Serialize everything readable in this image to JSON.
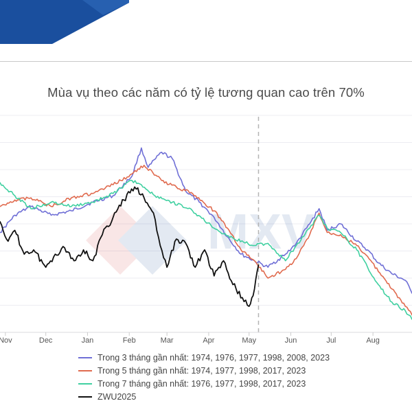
{
  "colors": {
    "banner_blue": "#1a4f9e",
    "banner_blue_light": "#2a64b4",
    "grid": "#ececf2",
    "divider": "#b4b4b4",
    "watermark_red": "#d94a4a",
    "watermark_blue": "#2e5b9e"
  },
  "watermark": {
    "text": "MXV"
  },
  "chart_data": {
    "type": "line",
    "title": "Mùa vụ theo các năm có tỷ lệ tương quan cao trên 70%",
    "xlabel": "",
    "ylabel": "",
    "x_axis": {
      "type": "date",
      "range": [
        "2024-10-28",
        "2025-08-30"
      ],
      "ticks": [
        {
          "date": "2024-11-01",
          "label": "Nov"
        },
        {
          "date": "2024-12-01",
          "label": "Dec"
        },
        {
          "date": "2025-01-01",
          "label": "Jan"
        },
        {
          "date": "2025-02-01",
          "label": "Feb"
        },
        {
          "date": "2025-03-01",
          "label": "Mar"
        },
        {
          "date": "2025-04-01",
          "label": "Apr"
        },
        {
          "date": "2025-05-01",
          "label": "May"
        },
        {
          "date": "2025-06-01",
          "label": "Jun"
        },
        {
          "date": "2025-07-01",
          "label": "Jul"
        },
        {
          "date": "2025-08-01",
          "label": "Aug"
        }
      ]
    },
    "y_axis": {
      "range": [
        0,
        100
      ],
      "tick_labels_shown": false,
      "grid": true
    },
    "vertical_marker": {
      "date": "2025-05-08",
      "style": "dashed"
    },
    "legend_position": "bottom",
    "series": [
      {
        "name": "Trong 3 tháng gần nhất: 1974, 1976, 1977, 1998, 2008, 2023",
        "color": "#6f6fd6",
        "points": [
          [
            "2024-10-28",
            46
          ],
          [
            "2024-11-08",
            54
          ],
          [
            "2024-11-20",
            58
          ],
          [
            "2024-12-05",
            54
          ],
          [
            "2024-12-20",
            56
          ],
          [
            "2025-01-05",
            60
          ],
          [
            "2025-01-20",
            63
          ],
          [
            "2025-02-03",
            72
          ],
          [
            "2025-02-10",
            85
          ],
          [
            "2025-02-15",
            76
          ],
          [
            "2025-02-25",
            83
          ],
          [
            "2025-03-05",
            80
          ],
          [
            "2025-03-15",
            65
          ],
          [
            "2025-03-25",
            60
          ],
          [
            "2025-04-05",
            53
          ],
          [
            "2025-04-15",
            44
          ],
          [
            "2025-04-25",
            36
          ],
          [
            "2025-05-05",
            33
          ],
          [
            "2025-05-15",
            30
          ],
          [
            "2025-05-28",
            36
          ],
          [
            "2025-06-05",
            41
          ],
          [
            "2025-06-15",
            50
          ],
          [
            "2025-06-22",
            57
          ],
          [
            "2025-06-28",
            47
          ],
          [
            "2025-07-08",
            50
          ],
          [
            "2025-07-20",
            42
          ],
          [
            "2025-07-28",
            38
          ],
          [
            "2025-08-05",
            32
          ],
          [
            "2025-08-15",
            27
          ],
          [
            "2025-08-25",
            24
          ],
          [
            "2025-08-30",
            18
          ]
        ]
      },
      {
        "name": "Trong 5 tháng gần nhất: 1974, 1977, 1998, 2017, 2023",
        "color": "#e06a4e",
        "points": [
          [
            "2024-10-28",
            58
          ],
          [
            "2024-11-08",
            61
          ],
          [
            "2024-11-20",
            62
          ],
          [
            "2024-12-05",
            58
          ],
          [
            "2024-12-20",
            62
          ],
          [
            "2025-01-05",
            64
          ],
          [
            "2025-01-20",
            68
          ],
          [
            "2025-02-03",
            73
          ],
          [
            "2025-02-12",
            77
          ],
          [
            "2025-02-25",
            70
          ],
          [
            "2025-03-08",
            67
          ],
          [
            "2025-03-20",
            64
          ],
          [
            "2025-04-05",
            56
          ],
          [
            "2025-04-15",
            48
          ],
          [
            "2025-04-25",
            38
          ],
          [
            "2025-05-05",
            33
          ],
          [
            "2025-05-15",
            25
          ],
          [
            "2025-05-28",
            29
          ],
          [
            "2025-06-05",
            34
          ],
          [
            "2025-06-15",
            45
          ],
          [
            "2025-06-22",
            55
          ],
          [
            "2025-06-28",
            46
          ],
          [
            "2025-07-08",
            45
          ],
          [
            "2025-07-20",
            40
          ],
          [
            "2025-07-28",
            35
          ],
          [
            "2025-08-05",
            28
          ],
          [
            "2025-08-15",
            20
          ],
          [
            "2025-08-25",
            12
          ],
          [
            "2025-08-30",
            8
          ]
        ]
      },
      {
        "name": "Trong 7 tháng gần nhất: 1976, 1977, 1998, 2017, 2023",
        "color": "#3fd0a0",
        "points": [
          [
            "2024-10-28",
            69
          ],
          [
            "2024-11-08",
            63
          ],
          [
            "2024-11-20",
            57
          ],
          [
            "2024-12-05",
            60
          ],
          [
            "2024-12-20",
            58
          ],
          [
            "2025-01-05",
            60
          ],
          [
            "2025-01-20",
            64
          ],
          [
            "2025-02-03",
            70
          ],
          [
            "2025-02-10",
            68
          ],
          [
            "2025-02-20",
            63
          ],
          [
            "2025-03-05",
            60
          ],
          [
            "2025-03-20",
            56
          ],
          [
            "2025-04-05",
            48
          ],
          [
            "2025-04-20",
            43
          ],
          [
            "2025-05-05",
            40
          ],
          [
            "2025-05-15",
            41
          ],
          [
            "2025-05-28",
            33
          ],
          [
            "2025-06-05",
            40
          ],
          [
            "2025-06-15",
            48
          ],
          [
            "2025-06-22",
            54
          ],
          [
            "2025-06-28",
            48
          ],
          [
            "2025-07-08",
            46
          ],
          [
            "2025-07-20",
            38
          ],
          [
            "2025-07-28",
            30
          ],
          [
            "2025-08-05",
            22
          ],
          [
            "2025-08-15",
            14
          ],
          [
            "2025-08-25",
            10
          ],
          [
            "2025-08-30",
            6
          ]
        ]
      },
      {
        "name": "ZWU2025",
        "color": "#111111",
        "points": [
          [
            "2024-10-28",
            51
          ],
          [
            "2024-11-03",
            42
          ],
          [
            "2024-11-08",
            47
          ],
          [
            "2024-11-15",
            36
          ],
          [
            "2024-11-22",
            38
          ],
          [
            "2024-12-01",
            30
          ],
          [
            "2024-12-08",
            36
          ],
          [
            "2024-12-15",
            39
          ],
          [
            "2024-12-22",
            33
          ],
          [
            "2024-12-29",
            38
          ],
          [
            "2025-01-05",
            33
          ],
          [
            "2025-01-12",
            45
          ],
          [
            "2025-01-20",
            53
          ],
          [
            "2025-01-28",
            61
          ],
          [
            "2025-02-05",
            67
          ],
          [
            "2025-02-12",
            62
          ],
          [
            "2025-02-19",
            55
          ],
          [
            "2025-02-24",
            40
          ],
          [
            "2025-03-01",
            30
          ],
          [
            "2025-03-08",
            43
          ],
          [
            "2025-03-15",
            41
          ],
          [
            "2025-03-22",
            30
          ],
          [
            "2025-03-29",
            38
          ],
          [
            "2025-04-05",
            26
          ],
          [
            "2025-04-12",
            33
          ],
          [
            "2025-04-19",
            22
          ],
          [
            "2025-04-26",
            16
          ],
          [
            "2025-05-01",
            12
          ],
          [
            "2025-05-05",
            20
          ],
          [
            "2025-05-08",
            31
          ]
        ]
      }
    ]
  }
}
